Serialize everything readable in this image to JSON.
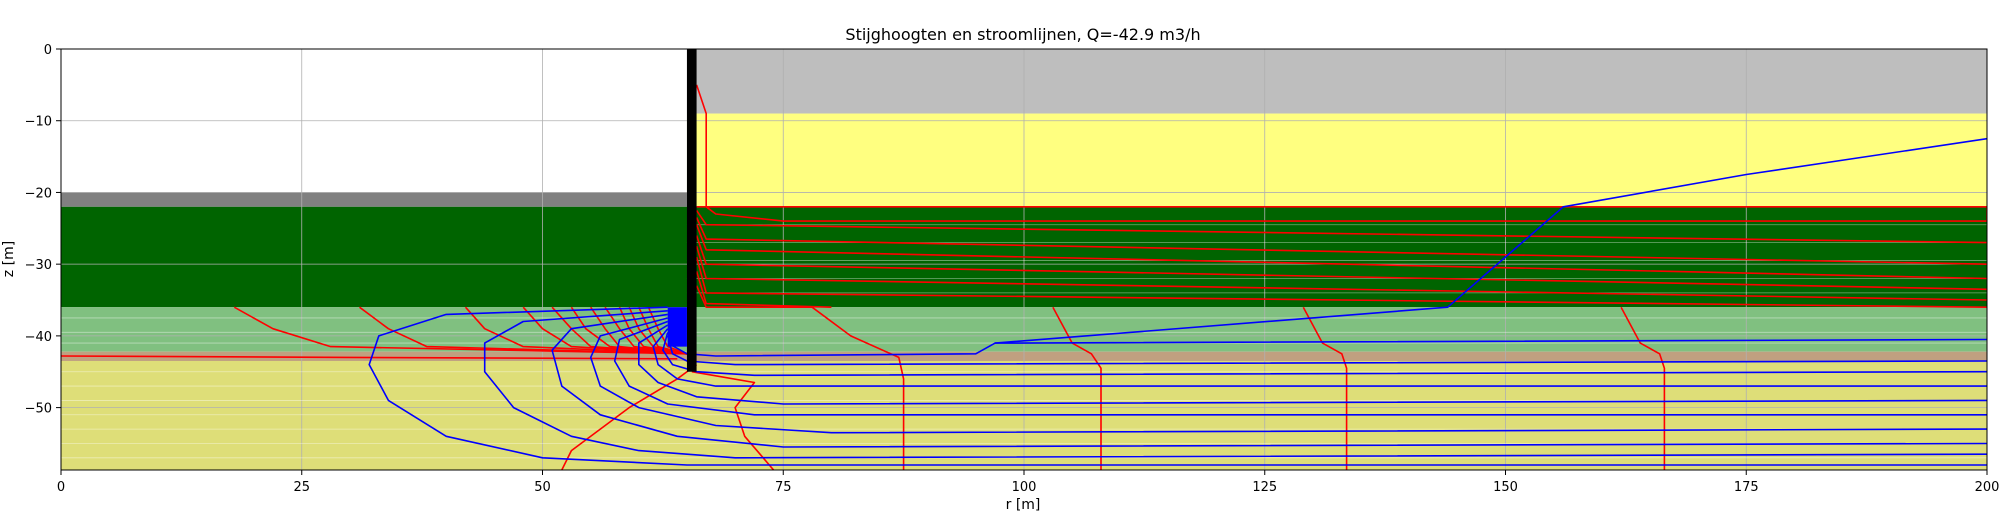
{
  "chart_data": {
    "type": "line",
    "title": "Stijghoogten en stroomlijnen, Q=-42.9 m3/h",
    "xlabel": "r [m]",
    "ylabel": "z [m]",
    "xlim": [
      0,
      200
    ],
    "ylim": [
      -58.7,
      0
    ],
    "xticks": [
      0,
      25,
      50,
      75,
      100,
      125,
      150,
      175,
      200
    ],
    "yticks": [
      0,
      -10,
      -20,
      -30,
      -40,
      -50
    ],
    "xtick_labels": [
      "0",
      "25",
      "50",
      "75",
      "100",
      "125",
      "150",
      "175",
      "200"
    ],
    "ytick_labels": [
      "0",
      "−10",
      "−20",
      "−30",
      "−40",
      "−50"
    ],
    "grid": true,
    "wall_color": "#000000",
    "well_screen_color": "#0000ff",
    "layers": [
      {
        "r": [
          65,
          200
        ],
        "z": [
          -9,
          0
        ],
        "color": "#bebebe"
      },
      {
        "r": [
          65,
          200
        ],
        "z": [
          -22,
          -9
        ],
        "color": "#ffff80"
      },
      {
        "r": [
          0,
          65
        ],
        "z": [
          -22,
          -20
        ],
        "color": "#808080"
      },
      {
        "r": [
          0,
          200
        ],
        "z": [
          -36,
          -22
        ],
        "color": "#006400"
      },
      {
        "r": [
          0,
          200
        ],
        "z": [
          -42.2,
          -36
        ],
        "color": "#80c080"
      },
      {
        "r": [
          0,
          200
        ],
        "z": [
          -43.5,
          -42.2
        ],
        "color": "#c0a080"
      },
      {
        "r": [
          0,
          200
        ],
        "z": [
          -58.7,
          -43.5
        ],
        "color": "#dede78"
      }
    ],
    "sublayer_lines": [
      {
        "r": [
          65,
          200
        ],
        "z": [
          -24.5,
          -27,
          -29.5,
          -32,
          -34,
          -37.5,
          -39.5,
          -41
        ]
      },
      {
        "r": [
          0,
          65
        ],
        "z": [
          -37.5,
          -39.5,
          -41,
          -45,
          -47,
          -49,
          -51,
          -53,
          -55,
          -57
        ]
      },
      {
        "r": [
          65,
          200
        ],
        "z": [
          -45,
          -47,
          -49,
          -51,
          -53,
          -55,
          -57
        ]
      }
    ],
    "wall": {
      "r": [
        65,
        66
      ],
      "z": [
        -45,
        0
      ]
    },
    "well_screen": {
      "r": [
        63,
        65
      ],
      "z": [
        -41.5,
        -36
      ]
    },
    "series": [
      {
        "color": "#ff0000",
        "points": [
          [
            18,
            -36
          ],
          [
            22,
            -39
          ],
          [
            28,
            -41.5
          ],
          [
            65,
            -42.5
          ]
        ]
      },
      {
        "color": "#ff0000",
        "points": [
          [
            31,
            -36
          ],
          [
            34,
            -39
          ],
          [
            38,
            -41.5
          ],
          [
            65,
            -42.5
          ]
        ]
      },
      {
        "color": "#ff0000",
        "points": [
          [
            42,
            -36
          ],
          [
            44,
            -39
          ],
          [
            48,
            -41.5
          ],
          [
            65,
            -42.5
          ]
        ]
      },
      {
        "color": "#ff0000",
        "points": [
          [
            48,
            -36
          ],
          [
            50,
            -39
          ],
          [
            53,
            -41.5
          ],
          [
            65,
            -42.5
          ]
        ]
      },
      {
        "color": "#ff0000",
        "points": [
          [
            51,
            -36
          ],
          [
            53,
            -39
          ],
          [
            55,
            -41.5
          ],
          [
            65,
            -42.5
          ]
        ]
      },
      {
        "color": "#ff0000",
        "points": [
          [
            53,
            -36
          ],
          [
            54.5,
            -39
          ],
          [
            57,
            -41.5
          ],
          [
            65,
            -42.5
          ]
        ]
      },
      {
        "color": "#ff0000",
        "points": [
          [
            55,
            -36
          ],
          [
            56.5,
            -39
          ],
          [
            58,
            -41.5
          ],
          [
            65,
            -42.5
          ]
        ]
      },
      {
        "color": "#ff0000",
        "points": [
          [
            56.5,
            -36
          ],
          [
            58,
            -39
          ],
          [
            59.5,
            -41.5
          ],
          [
            65,
            -42.5
          ]
        ]
      },
      {
        "color": "#ff0000",
        "points": [
          [
            58,
            -36
          ],
          [
            59,
            -39
          ],
          [
            60.5,
            -41.5
          ],
          [
            65,
            -42.5
          ]
        ]
      },
      {
        "color": "#ff0000",
        "points": [
          [
            59,
            -36
          ],
          [
            60,
            -39
          ],
          [
            61.5,
            -41.5
          ],
          [
            65,
            -42.5
          ]
        ]
      },
      {
        "color": "#ff0000",
        "points": [
          [
            60,
            -36
          ],
          [
            61,
            -39
          ],
          [
            62,
            -41.5
          ],
          [
            65,
            -42.5
          ]
        ]
      },
      {
        "color": "#ff0000",
        "points": [
          [
            61,
            -36
          ],
          [
            62,
            -39
          ],
          [
            63,
            -41.5
          ],
          [
            65,
            -42.5
          ]
        ]
      },
      {
        "color": "#ff0000",
        "points": [
          [
            0,
            -42.8
          ],
          [
            30,
            -43
          ],
          [
            64,
            -43.2
          ]
        ]
      },
      {
        "color": "#ff0000",
        "points": [
          [
            52,
            -58.7
          ],
          [
            53,
            -56
          ],
          [
            59,
            -50
          ],
          [
            64,
            -46
          ],
          [
            66,
            -44
          ]
        ]
      },
      {
        "color": "#ff0000",
        "points": [
          [
            66,
            -5
          ],
          [
            67,
            -9
          ],
          [
            67,
            -22
          ],
          [
            68,
            -23
          ],
          [
            75,
            -24
          ],
          [
            200,
            -24
          ],
          [
            200,
            -22
          ],
          [
            66,
            -22
          ]
        ]
      },
      {
        "color": "#ff0000",
        "points": [
          [
            66,
            -22.5
          ],
          [
            67,
            -24.5
          ],
          [
            200,
            -27
          ]
        ]
      },
      {
        "color": "#ff0000",
        "points": [
          [
            66,
            -23.5
          ],
          [
            67,
            -26.5
          ],
          [
            200,
            -30
          ]
        ]
      },
      {
        "color": "#ff0000",
        "points": [
          [
            66,
            -24.5
          ],
          [
            67,
            -28
          ],
          [
            200,
            -32
          ]
        ]
      },
      {
        "color": "#ff0000",
        "points": [
          [
            66,
            -26
          ],
          [
            67,
            -30
          ],
          [
            200,
            -33.5
          ]
        ]
      },
      {
        "color": "#ff0000",
        "points": [
          [
            66,
            -27.5
          ],
          [
            67,
            -32
          ],
          [
            200,
            -35
          ]
        ]
      },
      {
        "color": "#ff0000",
        "points": [
          [
            66,
            -29
          ],
          [
            67,
            -34
          ],
          [
            200,
            -36
          ]
        ]
      },
      {
        "color": "#ff0000",
        "points": [
          [
            66,
            -31
          ],
          [
            67,
            -35.5
          ],
          [
            80,
            -36
          ]
        ]
      },
      {
        "color": "#ff0000",
        "points": [
          [
            66,
            -33
          ],
          [
            67,
            -36
          ],
          [
            78,
            -36
          ]
        ]
      },
      {
        "color": "#ff0000",
        "points": [
          [
            78,
            -36
          ],
          [
            82,
            -40
          ],
          [
            87,
            -43
          ],
          [
            87.5,
            -46
          ],
          [
            87.5,
            -58.7
          ]
        ]
      },
      {
        "color": "#ff0000",
        "points": [
          [
            103,
            -36
          ],
          [
            105,
            -41
          ],
          [
            107,
            -42.5
          ],
          [
            108,
            -44.5
          ],
          [
            108,
            -58.7
          ]
        ]
      },
      {
        "color": "#ff0000",
        "points": [
          [
            129,
            -36
          ],
          [
            131,
            -41
          ],
          [
            133,
            -42.5
          ],
          [
            133.5,
            -44.5
          ],
          [
            133.5,
            -58.7
          ]
        ]
      },
      {
        "color": "#ff0000",
        "points": [
          [
            162,
            -36
          ],
          [
            164,
            -41
          ],
          [
            166,
            -42.5
          ],
          [
            166.5,
            -44.5
          ],
          [
            166.5,
            -58.7
          ]
        ]
      },
      {
        "color": "#ff0000",
        "points": [
          [
            74,
            -58.7
          ],
          [
            71,
            -54
          ],
          [
            70,
            -50
          ],
          [
            72,
            -46.5
          ],
          [
            65.5,
            -45
          ]
        ]
      },
      {
        "color": "#0000ff",
        "points": [
          [
            63,
            -36
          ],
          [
            40,
            -37
          ],
          [
            33,
            -40
          ],
          [
            32,
            -44
          ],
          [
            34,
            -49
          ],
          [
            40,
            -54
          ],
          [
            50,
            -57
          ],
          [
            65,
            -58
          ],
          [
            200,
            -58
          ]
        ]
      },
      {
        "color": "#0000ff",
        "points": [
          [
            63,
            -36.5
          ],
          [
            48,
            -38
          ],
          [
            44,
            -41
          ],
          [
            44,
            -45
          ],
          [
            47,
            -50
          ],
          [
            53,
            -54
          ],
          [
            60,
            -56
          ],
          [
            70,
            -57
          ],
          [
            200,
            -56.5
          ]
        ]
      },
      {
        "color": "#0000ff",
        "points": [
          [
            63,
            -37
          ],
          [
            53,
            -39
          ],
          [
            51,
            -42
          ],
          [
            52,
            -47
          ],
          [
            56,
            -51
          ],
          [
            64,
            -54
          ],
          [
            75,
            -55.5
          ],
          [
            200,
            -55
          ]
        ]
      },
      {
        "color": "#0000ff",
        "points": [
          [
            63,
            -37.5
          ],
          [
            56,
            -40
          ],
          [
            55,
            -43
          ],
          [
            56,
            -47
          ],
          [
            60,
            -50
          ],
          [
            68,
            -52.5
          ],
          [
            80,
            -53.5
          ],
          [
            200,
            -53
          ]
        ]
      },
      {
        "color": "#0000ff",
        "points": [
          [
            63,
            -38
          ],
          [
            58,
            -40.5
          ],
          [
            57.5,
            -43.5
          ],
          [
            59,
            -47
          ],
          [
            63,
            -49.5
          ],
          [
            72,
            -51
          ],
          [
            200,
            -51
          ]
        ]
      },
      {
        "color": "#0000ff",
        "points": [
          [
            63,
            -38.5
          ],
          [
            60,
            -41
          ],
          [
            60,
            -44
          ],
          [
            62,
            -46.5
          ],
          [
            66,
            -48.5
          ],
          [
            75,
            -49.5
          ],
          [
            200,
            -49
          ]
        ]
      },
      {
        "color": "#0000ff",
        "points": [
          [
            63,
            -39
          ],
          [
            61.5,
            -41.5
          ],
          [
            62,
            -44
          ],
          [
            64,
            -46
          ],
          [
            68,
            -47
          ],
          [
            200,
            -47
          ]
        ]
      },
      {
        "color": "#0000ff",
        "points": [
          [
            63,
            -39.5
          ],
          [
            62.5,
            -42
          ],
          [
            63.5,
            -44
          ],
          [
            66,
            -45
          ],
          [
            72,
            -45.5
          ],
          [
            200,
            -45
          ]
        ]
      },
      {
        "color": "#0000ff",
        "points": [
          [
            63,
            -40
          ],
          [
            63.5,
            -42.5
          ],
          [
            65,
            -43.5
          ],
          [
            70,
            -44
          ],
          [
            200,
            -43.5
          ]
        ]
      },
      {
        "color": "#0000ff",
        "points": [
          [
            63,
            -41
          ],
          [
            65,
            -42.5
          ],
          [
            68,
            -42.8
          ],
          [
            95,
            -42.5
          ],
          [
            97,
            -41
          ],
          [
            200,
            -40.5
          ]
        ]
      },
      {
        "color": "#0000ff",
        "points": [
          [
            97,
            -41
          ],
          [
            144,
            -36
          ],
          [
            156,
            -22
          ],
          [
            175,
            -17.5
          ],
          [
            200,
            -12.5
          ]
        ]
      }
    ]
  }
}
